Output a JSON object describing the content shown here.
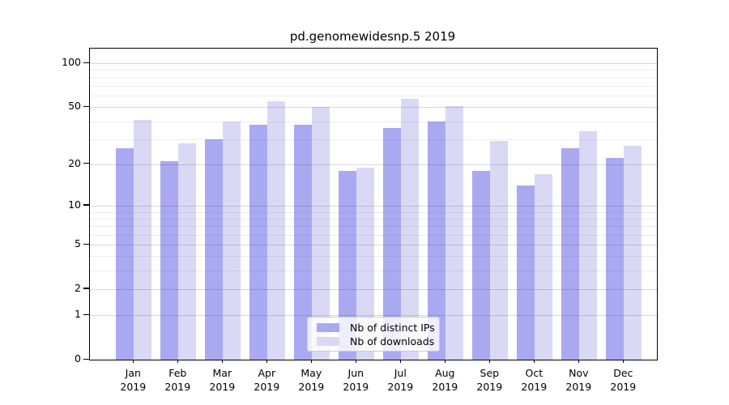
{
  "title": "pd.genomewidesnp.5 2019",
  "chart_data": {
    "type": "bar",
    "title": "pd.genomewidesnp.5 2019",
    "categories": [
      "Jan 2019",
      "Feb 2019",
      "Mar 2019",
      "Apr 2019",
      "May 2019",
      "Jun 2019",
      "Jul 2019",
      "Aug 2019",
      "Sep 2019",
      "Oct 2019",
      "Nov 2019",
      "Dec 2019"
    ],
    "series": [
      {
        "name": "Nb of distinct IPs",
        "color": "#a9a9f2",
        "values": [
          26,
          21,
          30,
          38,
          38,
          18,
          36,
          40,
          18,
          14,
          26,
          22
        ]
      },
      {
        "name": "Nb of downloads",
        "color": "#d9d9f6",
        "values": [
          41,
          28,
          40,
          55,
          50,
          19,
          57,
          51,
          29,
          17,
          34,
          27
        ]
      }
    ],
    "yscale": "log1p",
    "ylim": [
      0,
      126
    ],
    "yticks": [
      0,
      1,
      2,
      5,
      10,
      20,
      50,
      100
    ],
    "minor_gridlines": [
      3,
      4,
      6,
      7,
      8,
      9,
      30,
      40,
      60,
      70,
      80,
      90
    ],
    "grid": true,
    "legend_position": "lower center",
    "xlabel": "",
    "ylabel": "",
    "colors": {
      "spine": "#000000",
      "tick_label": "#000000",
      "background": "#ffffff"
    }
  }
}
